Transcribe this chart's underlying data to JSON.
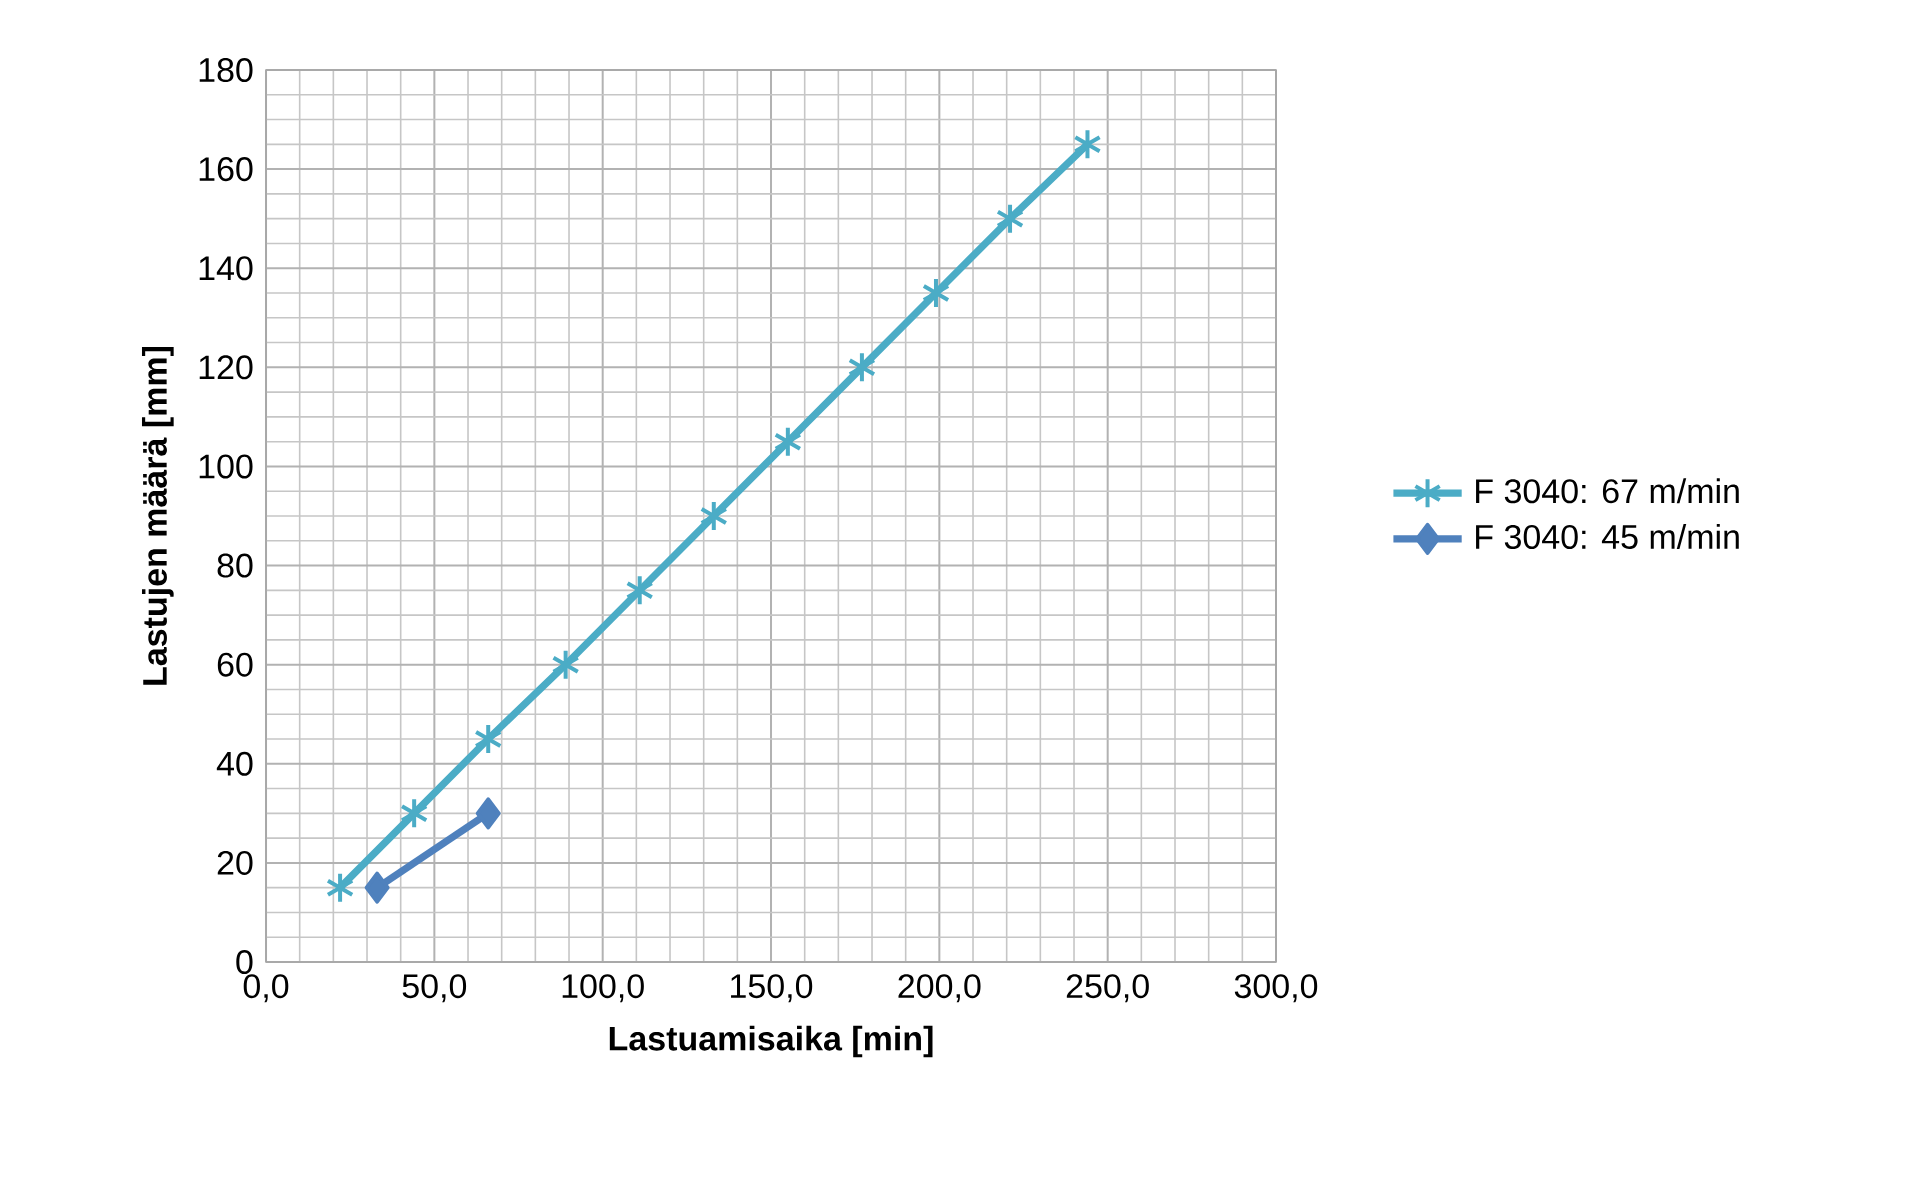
{
  "chart_data": {
    "type": "line",
    "xlabel": "Lastuamisaika [min]",
    "ylabel": "Lastujen määrä [mm]",
    "xlim": [
      0,
      300
    ],
    "ylim": [
      0,
      180
    ],
    "xticks": [
      {
        "value": 0,
        "label": "0,0"
      },
      {
        "value": 50,
        "label": "50,0"
      },
      {
        "value": 100,
        "label": "100,0"
      },
      {
        "value": 150,
        "label": "150,0"
      },
      {
        "value": 200,
        "label": "200,0"
      },
      {
        "value": 250,
        "label": "250,0"
      },
      {
        "value": 300,
        "label": "300,0"
      }
    ],
    "yticks": [
      0,
      20,
      40,
      60,
      80,
      100,
      120,
      140,
      160,
      180
    ],
    "grid": true,
    "legend": "right",
    "line_style": "solid",
    "series": [
      {
        "name": "F 3040: 67 m/min",
        "color": "#4bacc6",
        "marker": "cross",
        "x": [
          22,
          44,
          66,
          89,
          111,
          133,
          155,
          177,
          199,
          221,
          244
        ],
        "values": [
          15,
          30,
          45,
          60,
          75,
          90,
          105,
          120,
          135,
          150,
          165
        ]
      },
      {
        "name": "F 3040: 45 m/min",
        "color": "#4f81bd",
        "marker": "diamond",
        "x": [
          33,
          66
        ],
        "values": [
          15,
          30
        ]
      }
    ]
  }
}
